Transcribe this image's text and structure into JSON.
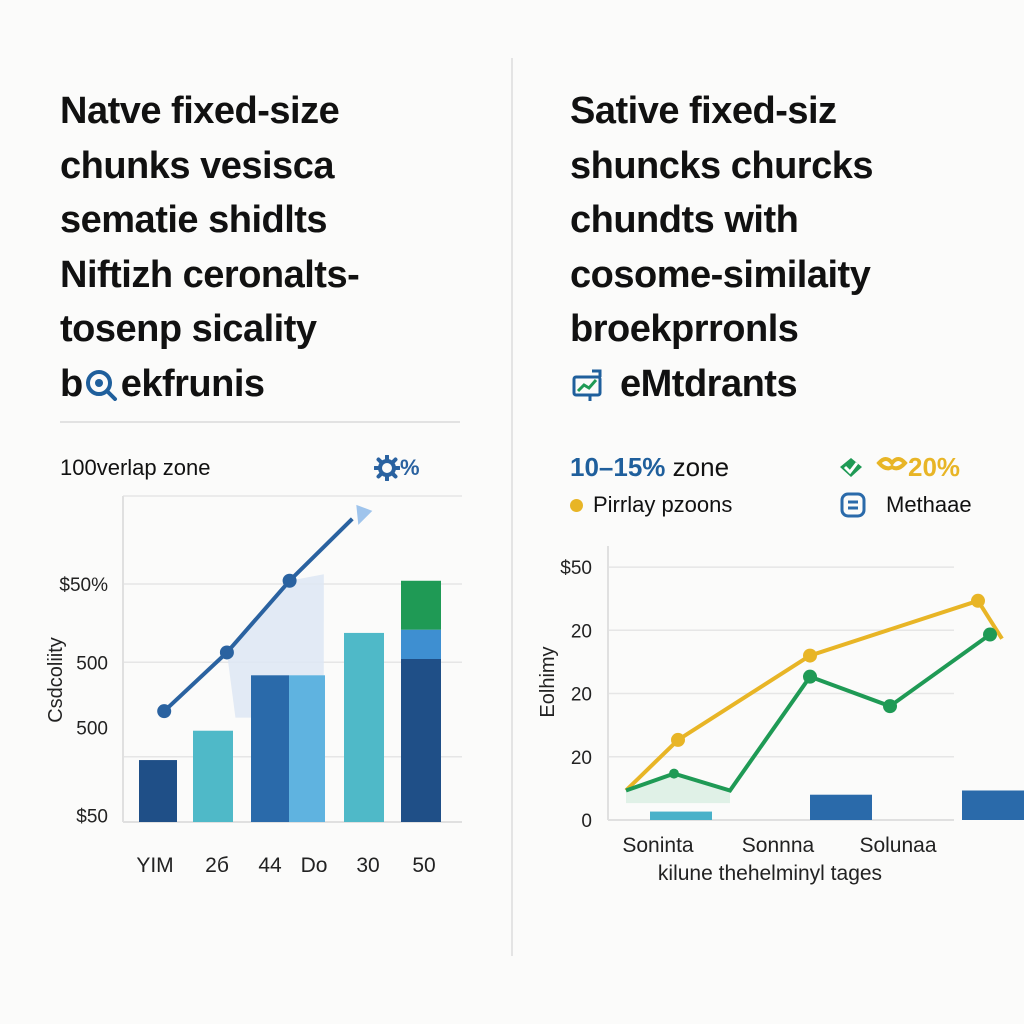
{
  "left": {
    "title_lines": [
      "Natve fixed-size",
      "chunks vesisca",
      "sematie shidlts",
      "Niftizh ceronalts-",
      "tosenp sicality"
    ],
    "title_last_pre": "b",
    "title_last_post": "ekfrunis",
    "legend_label": "100verlap zone",
    "legend_badge": "%",
    "colors": {
      "line": "#2a62a0",
      "bar_dark": "#1f4f87",
      "bar_mid": "#2a6aaa",
      "bar_light": "#5fb3e0",
      "bar_teal": "#4fb9c8",
      "bar_blue": "#3e8fd1",
      "bar_green": "#1f9a55",
      "band": "#dde6f3"
    }
  },
  "right": {
    "title_lines": [
      "Sative fixed-siz",
      "shuncks churcks",
      "chundts with",
      "cosome-similaity",
      "broekprronls"
    ],
    "title_last_post": "eMtdrants",
    "zone_label_bold": "10–15%",
    "zone_label_rest": " zone",
    "badge_pct": "20%",
    "legend_dot_label": "Pirrlay pzoons",
    "legend_box_label": "Methaae",
    "colors": {
      "yellow": "#e8b526",
      "green": "#1f9a55",
      "blue": "#2a6aaa",
      "teal": "#49b1c9"
    }
  },
  "chart_data": [
    {
      "type": "bar",
      "title": "",
      "xlabel": "",
      "ylabel": "Csdcoliity",
      "categories": [
        "YIM",
        "2б",
        "44",
        "Do",
        "30",
        "50"
      ],
      "y_tick_labels": [
        "$50%",
        "500",
        "500",
        "$50"
      ],
      "ylim": [
        0,
        100
      ],
      "series": [
        {
          "values": [
            19,
            28,
            45,
            45,
            58,
            50
          ]
        },
        {
          "values": [
            0,
            0,
            0,
            0,
            0,
            9
          ]
        },
        {
          "values": [
            0,
            0,
            0,
            0,
            0,
            15
          ]
        }
      ],
      "line": {
        "x": [
          0.6,
          1.7,
          2.8,
          3.9
        ],
        "values": [
          34,
          52,
          74,
          93
        ]
      },
      "grid": true
    },
    {
      "type": "line",
      "title": "",
      "xlabel": "kilune thehelminyl tages",
      "ylabel": "Eolhimy",
      "categories": [
        "Soninta",
        "Sonnna",
        "Solunaa"
      ],
      "y_tick_labels": [
        "$50",
        "20",
        "20",
        "20",
        "0"
      ],
      "ylim": [
        0,
        65
      ],
      "series": [
        {
          "x": [
            0,
            0.65,
            2.3,
            4.4,
            4.7
          ],
          "values": [
            7,
            19,
            39,
            52,
            43
          ]
        },
        {
          "x": [
            0,
            0.6,
            1.3,
            2.3,
            3.3,
            4.55
          ],
          "values": [
            7,
            11,
            7,
            34,
            27,
            44
          ]
        }
      ],
      "bars": {
        "x": [
          0.3,
          2.3,
          4.2
        ],
        "values": [
          2,
          6,
          7
        ]
      },
      "grid": true
    }
  ]
}
